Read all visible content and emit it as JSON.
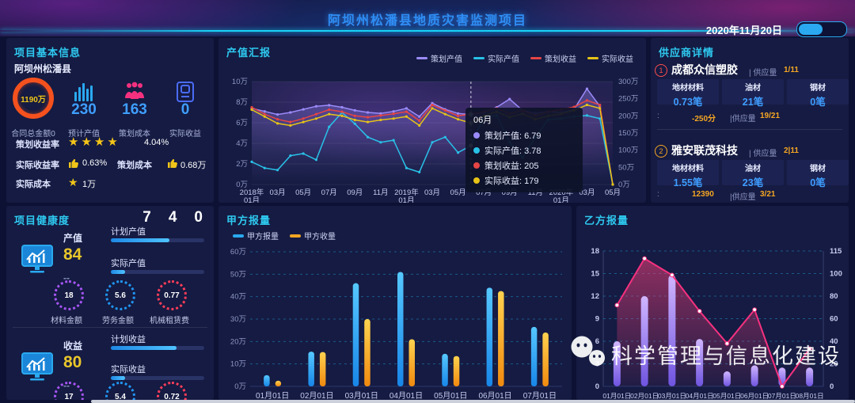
{
  "header": {
    "title": "阿坝州松潘县地质灾害监测项目",
    "date": "2020年11月20日"
  },
  "colors": {
    "accent_cyan": "#2ec9f0",
    "accent_blue": "#3f9eff",
    "yellow": "#f0c419",
    "orange": "#f5a623",
    "pink": "#f5317f"
  },
  "basic_info": {
    "title": "项目基本信息",
    "region": "阿坝州松潘县",
    "ring": {
      "value": "1190万",
      "label": "合同总金额0"
    },
    "stats": [
      {
        "icon": "bar-chart-icon",
        "value": "230",
        "label": "预计产值"
      },
      {
        "icon": "people-icon",
        "value": "163",
        "label": "策划成本"
      },
      {
        "icon": "device-icon",
        "value": "0",
        "label": "实际收益"
      }
    ],
    "rows": {
      "r1_label": "策划收益率",
      "r1_stars": "★★★★",
      "r1_value": "4.04%",
      "r2_label1": "实际收益率",
      "r2_value1": "0.63%",
      "r2_label2": "策划成本",
      "r2_value2": "0.68万",
      "r3_label": "实际成本",
      "r3_star": "★",
      "r3_value": "1万"
    }
  },
  "health": {
    "title": "项目健康度",
    "counters": [
      "7",
      "4",
      "0"
    ],
    "sections": [
      {
        "metric_label": "产值",
        "metric_value": "84",
        "metric_sub": "--",
        "bars": [
          {
            "label": "计划产值",
            "pct": 63
          },
          {
            "label": "实际产值",
            "pct": 15
          }
        ],
        "gauges": [
          {
            "value": "18",
            "label": "材料金额",
            "color": "#a855f7"
          },
          {
            "value": "5.6",
            "label": "劳务金额",
            "color": "#2196f3"
          },
          {
            "value": "0.77",
            "label": "机械租赁费",
            "color": "#ff3d5a"
          }
        ]
      },
      {
        "metric_label": "收益",
        "metric_value": "80",
        "metric_sub": "--",
        "bars": [
          {
            "label": "计划收益",
            "pct": 70
          },
          {
            "label": "实际收益",
            "pct": 15
          }
        ],
        "gauges": [
          {
            "value": "17",
            "label": "",
            "color": "#a855f7"
          },
          {
            "value": "5.4",
            "label": "",
            "color": "#2196f3"
          },
          {
            "value": "0.72",
            "label": "",
            "color": "#ff3d5a"
          }
        ]
      }
    ]
  },
  "suppliers": {
    "title": "供应商详情",
    "items": [
      {
        "rank": "1",
        "name": "成都众信塑胶",
        "supply_label": "| 供应量",
        "supply_value": "1/11",
        "cells": [
          {
            "label": "地材材料",
            "value": "0.73笔"
          },
          {
            "label": "油材",
            "value": "21笔"
          },
          {
            "label": "钢材",
            "value": "0笔"
          }
        ],
        "score_label": ":",
        "score": "-250分",
        "supply2_label": "|供应量",
        "supply2_value": "19/21"
      },
      {
        "rank": "2",
        "name": "雅安联茂科技",
        "supply_label": "| 供应量",
        "supply_value": "2|11",
        "cells": [
          {
            "label": "地材材料",
            "value": "1.55笔"
          },
          {
            "label": "油材",
            "value": "23笔"
          },
          {
            "label": "钢材",
            "value": "0笔"
          }
        ],
        "score_label": ":",
        "score": "12390",
        "supply2_label": "|供应量",
        "supply2_value": "3/21"
      }
    ]
  },
  "watermark": {
    "text": "科学管理与信息化建设"
  },
  "chart_data": [
    {
      "name": "output_value_report",
      "type": "line",
      "title": "产值汇报",
      "left_axis": {
        "min": 0,
        "max": 10,
        "ticks": [
          "0万",
          "2万",
          "4万",
          "6万",
          "8万",
          "10万"
        ]
      },
      "right_axis": {
        "min": 0,
        "max": 300,
        "ticks": [
          "0万",
          "50万",
          "100万",
          "150万",
          "200万",
          "250万",
          "300万"
        ]
      },
      "x_ticks": [
        {
          "index": 0,
          "label": "2018年01月"
        },
        {
          "index": 2,
          "label": "03月"
        },
        {
          "index": 4,
          "label": "05月"
        },
        {
          "index": 6,
          "label": "07月"
        },
        {
          "index": 8,
          "label": "09月"
        },
        {
          "index": 10,
          "label": "11月"
        },
        {
          "index": 12,
          "label": "2019年01月"
        },
        {
          "index": 14,
          "label": "03月"
        },
        {
          "index": 16,
          "label": "05月"
        },
        {
          "index": 18,
          "label": "07月"
        },
        {
          "index": 20,
          "label": "09月"
        },
        {
          "index": 22,
          "label": "11月"
        },
        {
          "index": 24,
          "label": "2020年01月"
        },
        {
          "index": 26,
          "label": "03月"
        },
        {
          "index": 28,
          "label": "05月"
        }
      ],
      "series": [
        {
          "name": "策划产值",
          "color": "#9b8bfa",
          "axis": "left",
          "values": [
            7.4,
            7.1,
            6.8,
            7.0,
            7.3,
            7.6,
            7.7,
            7.5,
            7.2,
            7.0,
            6.9,
            7.1,
            7.4,
            6.6,
            7.9,
            7.3,
            6.9,
            6.79,
            7.0,
            7.5,
            8.3,
            7.2,
            6.9,
            7.1,
            7.0,
            7.3,
            9.3,
            7.6,
            0
          ]
        },
        {
          "name": "实际产值",
          "color": "#29c1e7",
          "axis": "left",
          "values": [
            2.2,
            1.6,
            1.4,
            2.8,
            3.0,
            2.4,
            5.6,
            7.0,
            5.9,
            4.6,
            4.1,
            4.3,
            1.6,
            1.2,
            4.1,
            4.6,
            3.1,
            3.78,
            6.6,
            6.7,
            4.1,
            2.6,
            4.6,
            6.3,
            6.4,
            6.6,
            6.7,
            6.4,
            0
          ]
        },
        {
          "name": "策划收益",
          "color": "#e64545",
          "axis": "right",
          "values": [
            225,
            205,
            190,
            182,
            192,
            205,
            218,
            212,
            200,
            196,
            201,
            206,
            212,
            186,
            232,
            216,
            200,
            205,
            212,
            222,
            206,
            216,
            200,
            212,
            218,
            226,
            245,
            232,
            0
          ]
        },
        {
          "name": "实际收益",
          "color": "#e6c317",
          "axis": "right",
          "values": [
            218,
            198,
            178,
            172,
            182,
            192,
            205,
            200,
            188,
            182,
            188,
            192,
            198,
            172,
            222,
            205,
            190,
            179,
            200,
            212,
            196,
            206,
            190,
            200,
            206,
            216,
            232,
            222,
            0
          ]
        }
      ],
      "tooltip": {
        "title": "06月",
        "index": 17,
        "items": [
          {
            "text": "策划产值: 6.79",
            "color": "#9b8bfa"
          },
          {
            "text": "实际产值: 3.78",
            "color": "#29c1e7"
          },
          {
            "text": "策划收益: 205",
            "color": "#e64545"
          },
          {
            "text": "实际收益: 179",
            "color": "#e6c317"
          }
        ]
      }
    },
    {
      "name": "party_a_report",
      "type": "bar",
      "title": "甲方报量",
      "categories": [
        "01月01日",
        "02月01日",
        "03月01日",
        "04月01日",
        "05月01日",
        "06月01日",
        "07月01日"
      ],
      "y_axis": {
        "min": 0,
        "max": 60,
        "ticks": [
          "0万",
          "10万",
          "20万",
          "30万",
          "40万",
          "50万",
          "60万"
        ]
      },
      "series": [
        {
          "name": "甲方报量",
          "color": "#2aa9f0",
          "values": [
            5,
            15.5,
            46,
            51,
            14.5,
            44,
            26.5
          ]
        },
        {
          "name": "甲方收量",
          "color": "#f5a623",
          "values": [
            2.5,
            15.3,
            30,
            21,
            13.5,
            42.5,
            24
          ]
        }
      ]
    },
    {
      "name": "party_b_report",
      "type": "bar-line",
      "title": "乙方报量",
      "categories": [
        "01月01日",
        "02月01日",
        "03月01日",
        "04月01日",
        "05月01日",
        "06月01日",
        "07月01日",
        "08月01日"
      ],
      "left_axis": {
        "min": 0,
        "max": 18,
        "ticks": [
          "0",
          "3",
          "6",
          "9",
          "12",
          "15",
          "18"
        ]
      },
      "right_axis": {
        "ticks": [
          "0",
          "20",
          "40",
          "60",
          "80",
          "100",
          "115"
        ]
      },
      "bar_series": {
        "name": "乙方报量-bar",
        "color": "#9d7bf2",
        "values": [
          6,
          12,
          14.8,
          6.3,
          2,
          2.8,
          2.5,
          2.5
        ]
      },
      "line_series": {
        "name": "乙方报量-line",
        "color": "#f5317f",
        "values": [
          10.8,
          17,
          14.8,
          10,
          5.7,
          10.2,
          0,
          5
        ]
      }
    }
  ]
}
